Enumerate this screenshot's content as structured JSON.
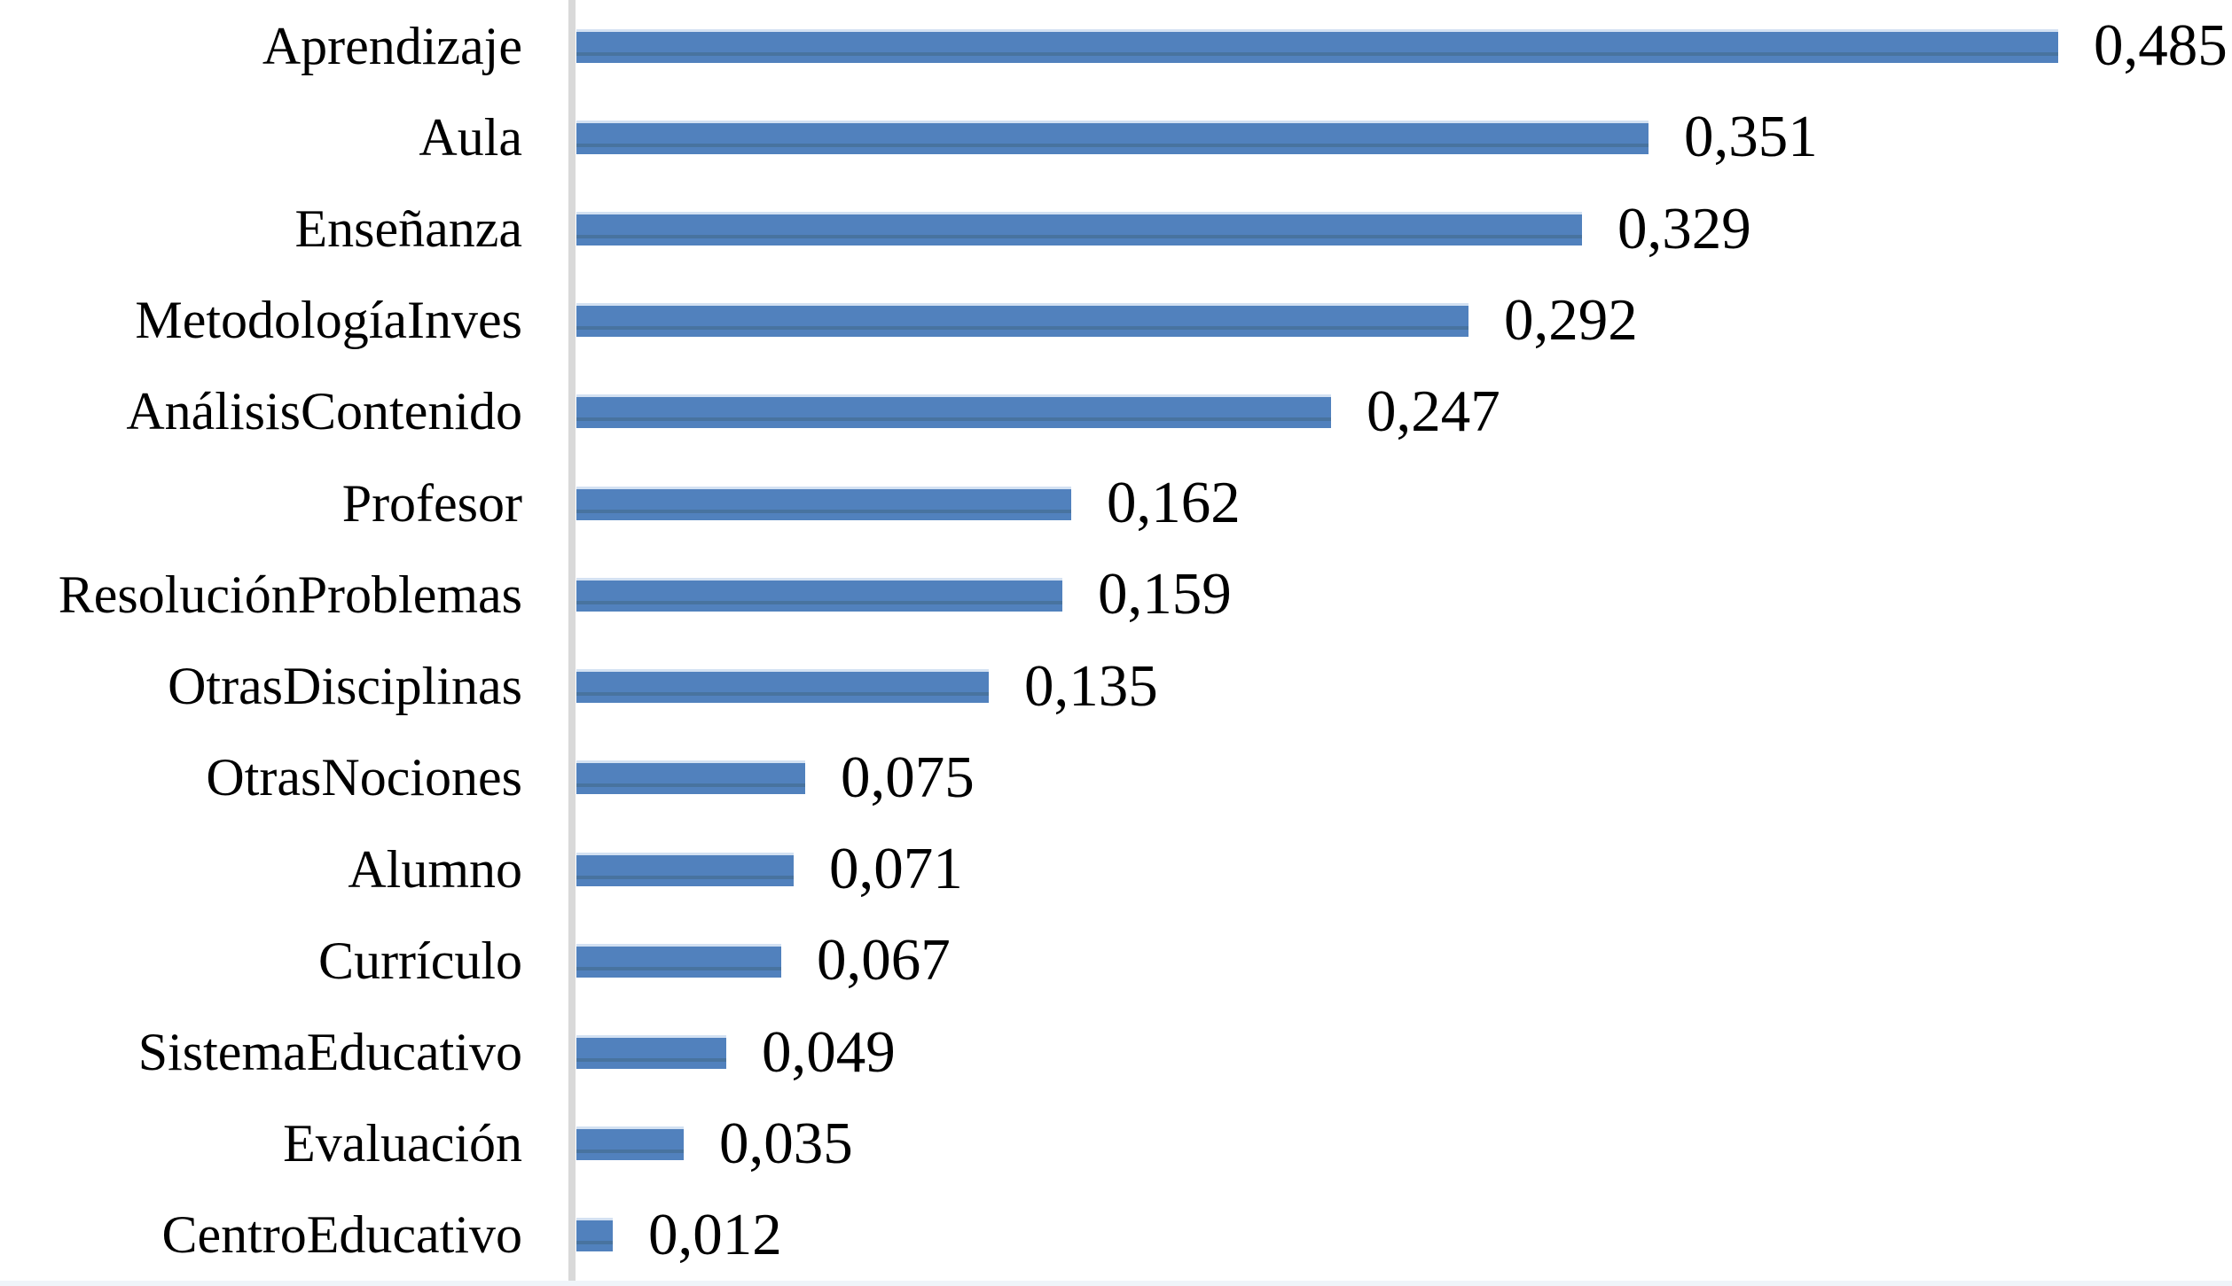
{
  "chart_data": {
    "type": "bar",
    "orientation": "horizontal",
    "title": "",
    "xlabel": "",
    "ylabel": "",
    "categories": [
      "Aprendizaje",
      "Aula",
      "Enseñanza",
      "MetodologíaInves",
      "AnálisisContenido",
      "Profesor",
      "ResoluciónProblemas",
      "OtrasDisciplinas",
      "OtrasNociones",
      "Alumno",
      "Currículo",
      "SistemaEducativo",
      "Evaluación",
      "CentroEducativo"
    ],
    "values": [
      0.485,
      0.351,
      0.329,
      0.292,
      0.247,
      0.162,
      0.159,
      0.135,
      0.075,
      0.071,
      0.067,
      0.049,
      0.035,
      0.012
    ],
    "value_labels": [
      "0,485",
      "0,351",
      "0,329",
      "0,292",
      "0,247",
      "0,162",
      "0,159",
      "0,135",
      "0,075",
      "0,071",
      "0,067",
      "0,049",
      "0,035",
      "0,012"
    ],
    "decimal_separator": ",",
    "data_labels_visible": true,
    "xlim": [
      0,
      0.52
    ],
    "grid": false,
    "legend": false,
    "bar_color": "#4f81bd",
    "bar_highlight_color": "#d3e1f2",
    "axis_line_color": "#d9d9d9",
    "baseline_color": "#eff4f9",
    "text_color": "#000000",
    "background_color": "#ffffff"
  }
}
